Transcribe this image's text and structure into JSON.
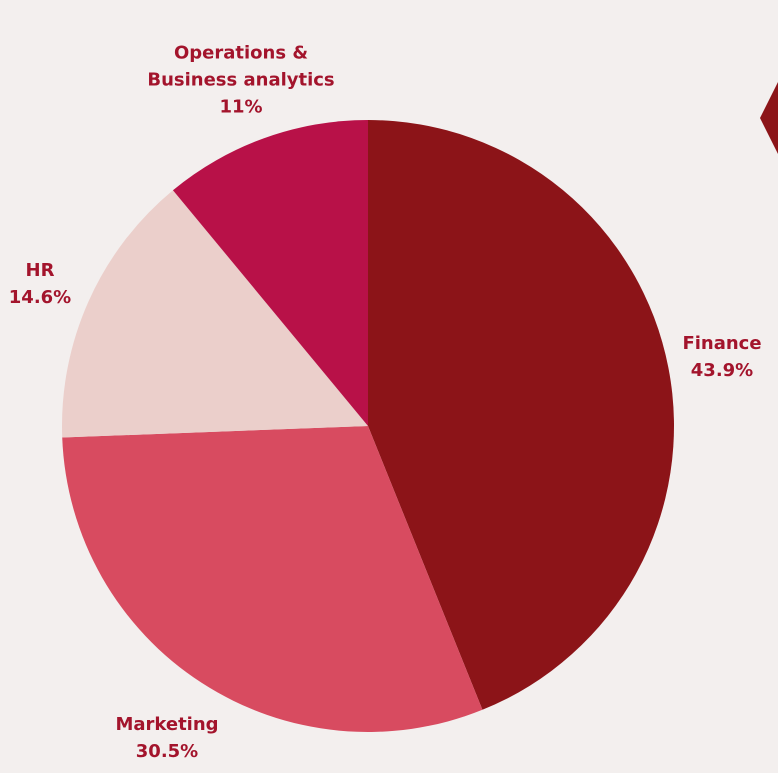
{
  "chart_data": {
    "type": "pie",
    "categories": [
      "Finance",
      "Marketing",
      "HR",
      "Operations & Business analytics"
    ],
    "values": [
      43.9,
      30.5,
      14.6,
      11
    ],
    "value_labels": [
      "43.9%",
      "30.5%",
      "14.6%",
      "11%"
    ],
    "colors": [
      "#8c1418",
      "#d84b60",
      "#ebcfcb",
      "#b81148"
    ]
  }
}
